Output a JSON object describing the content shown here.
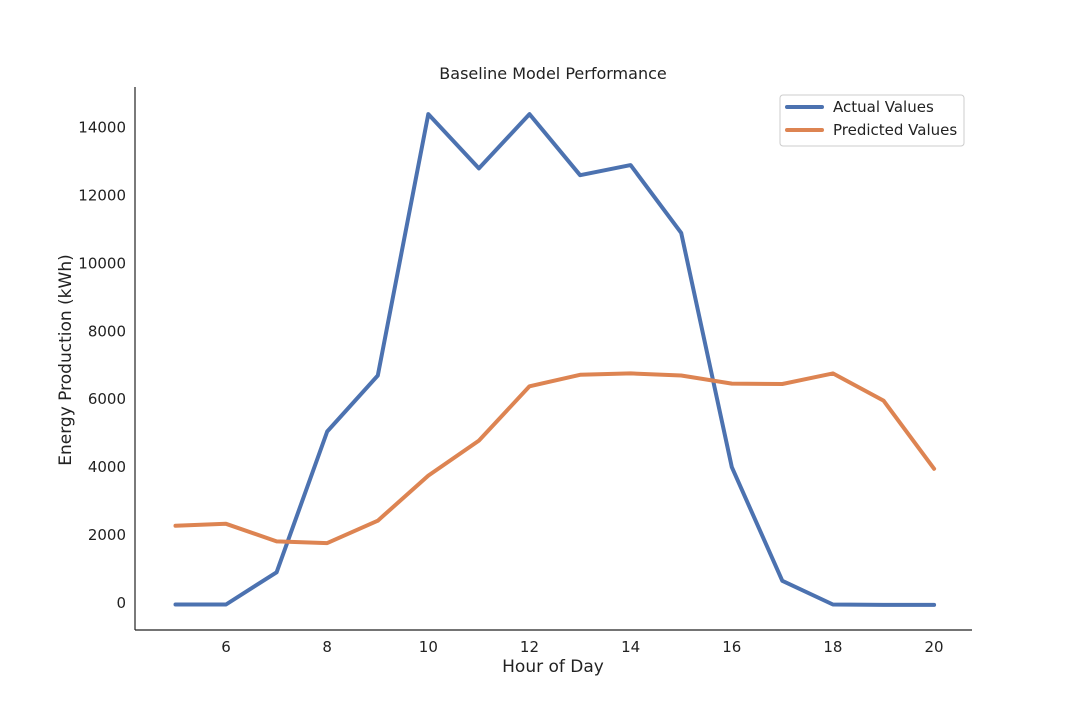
{
  "chart_data": {
    "type": "line",
    "title": "Baseline Model Performance",
    "xlabel": "Hour of Day",
    "ylabel": "Energy Production (kWh)",
    "x": [
      5,
      6,
      7,
      8,
      9,
      10,
      11,
      12,
      13,
      14,
      15,
      16,
      17,
      18,
      19,
      20
    ],
    "xlim": [
      4.2,
      20.75
    ],
    "ylim": [
      -800,
      15200
    ],
    "xticks": [
      6,
      8,
      10,
      12,
      14,
      16,
      18,
      20
    ],
    "yticks": [
      0,
      2000,
      4000,
      6000,
      8000,
      10000,
      12000,
      14000
    ],
    "grid": false,
    "legend_position": "top-right",
    "series": [
      {
        "name": "Actual Values",
        "color": "#4c72b0",
        "values": [
          -50,
          -50,
          900,
          5050,
          6700,
          14400,
          12800,
          14400,
          12600,
          12900,
          10900,
          4000,
          650,
          -50,
          -60,
          -60
        ]
      },
      {
        "name": "Predicted Values",
        "color": "#dd8452",
        "values": [
          2270,
          2330,
          1810,
          1760,
          2420,
          3750,
          4780,
          6380,
          6720,
          6760,
          6700,
          6460,
          6450,
          6760,
          5960,
          3950
        ]
      }
    ]
  }
}
